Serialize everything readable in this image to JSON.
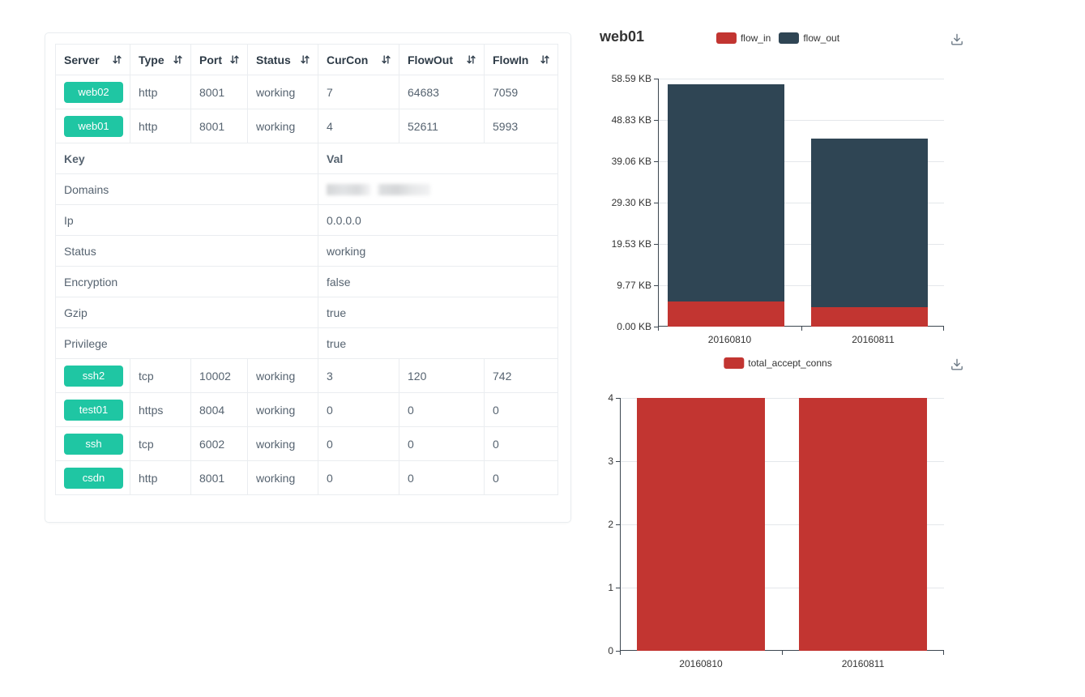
{
  "table": {
    "columns": [
      {
        "label": "Server"
      },
      {
        "label": "Type"
      },
      {
        "label": "Port"
      },
      {
        "label": "Status"
      },
      {
        "label": "CurCon"
      },
      {
        "label": "FlowOut"
      },
      {
        "label": "FlowIn"
      }
    ],
    "rows_top": [
      {
        "server": "web02",
        "type": "http",
        "port": "8001",
        "status": "working",
        "curcon": "7",
        "flowout": "64683",
        "flowin": "7059"
      },
      {
        "server": "web01",
        "type": "http",
        "port": "8001",
        "status": "working",
        "curcon": "4",
        "flowout": "52611",
        "flowin": "5993"
      }
    ],
    "kv_header": {
      "key": "Key",
      "val": "Val"
    },
    "kv_rows": [
      {
        "key": "Domains",
        "val": "",
        "redacted": true
      },
      {
        "key": "Ip",
        "val": "0.0.0.0"
      },
      {
        "key": "Status",
        "val": "working"
      },
      {
        "key": "Encryption",
        "val": "false"
      },
      {
        "key": "Gzip",
        "val": "true"
      },
      {
        "key": "Privilege",
        "val": "true"
      }
    ],
    "rows_bottom": [
      {
        "server": "ssh2",
        "type": "tcp",
        "port": "10002",
        "status": "working",
        "curcon": "3",
        "flowout": "120",
        "flowin": "742"
      },
      {
        "server": "test01",
        "type": "https",
        "port": "8004",
        "status": "working",
        "curcon": "0",
        "flowout": "0",
        "flowin": "0"
      },
      {
        "server": "ssh",
        "type": "tcp",
        "port": "6002",
        "status": "working",
        "curcon": "0",
        "flowout": "0",
        "flowin": "0"
      },
      {
        "server": "csdn",
        "type": "http",
        "port": "8001",
        "status": "working",
        "curcon": "0",
        "flowout": "0",
        "flowin": "0"
      }
    ],
    "badge_color": "#1fc6a3"
  },
  "chart_data": [
    {
      "type": "bar",
      "stacked": true,
      "title": "web01",
      "categories": [
        "20160810",
        "20160811"
      ],
      "series": [
        {
          "name": "flow_in",
          "color": "#c23531",
          "values": [
            5.85,
            4.6
          ]
        },
        {
          "name": "flow_out",
          "color": "#2f4554",
          "values": [
            51.38,
            39.9
          ]
        }
      ],
      "unit": "KB",
      "ylim": [
        0,
        58.59
      ],
      "y_tick_labels": [
        "58.59 KB",
        "48.83 KB",
        "39.06 KB",
        "29.30 KB",
        "19.53 KB",
        "9.77 KB",
        "0.00 KB"
      ],
      "legend_position": "top-center",
      "grid": true,
      "toolbox": [
        "save-as-image"
      ]
    },
    {
      "type": "bar",
      "stacked": false,
      "title": "",
      "categories": [
        "20160810",
        "20160811"
      ],
      "series": [
        {
          "name": "total_accept_conns",
          "color": "#c23531",
          "values": [
            4,
            4
          ]
        }
      ],
      "unit": "",
      "ylim": [
        0,
        4
      ],
      "y_tick_labels": [
        "4",
        "3",
        "2",
        "1",
        "0"
      ],
      "legend_position": "top-center",
      "grid": true,
      "toolbox": [
        "save-as-image"
      ]
    }
  ]
}
